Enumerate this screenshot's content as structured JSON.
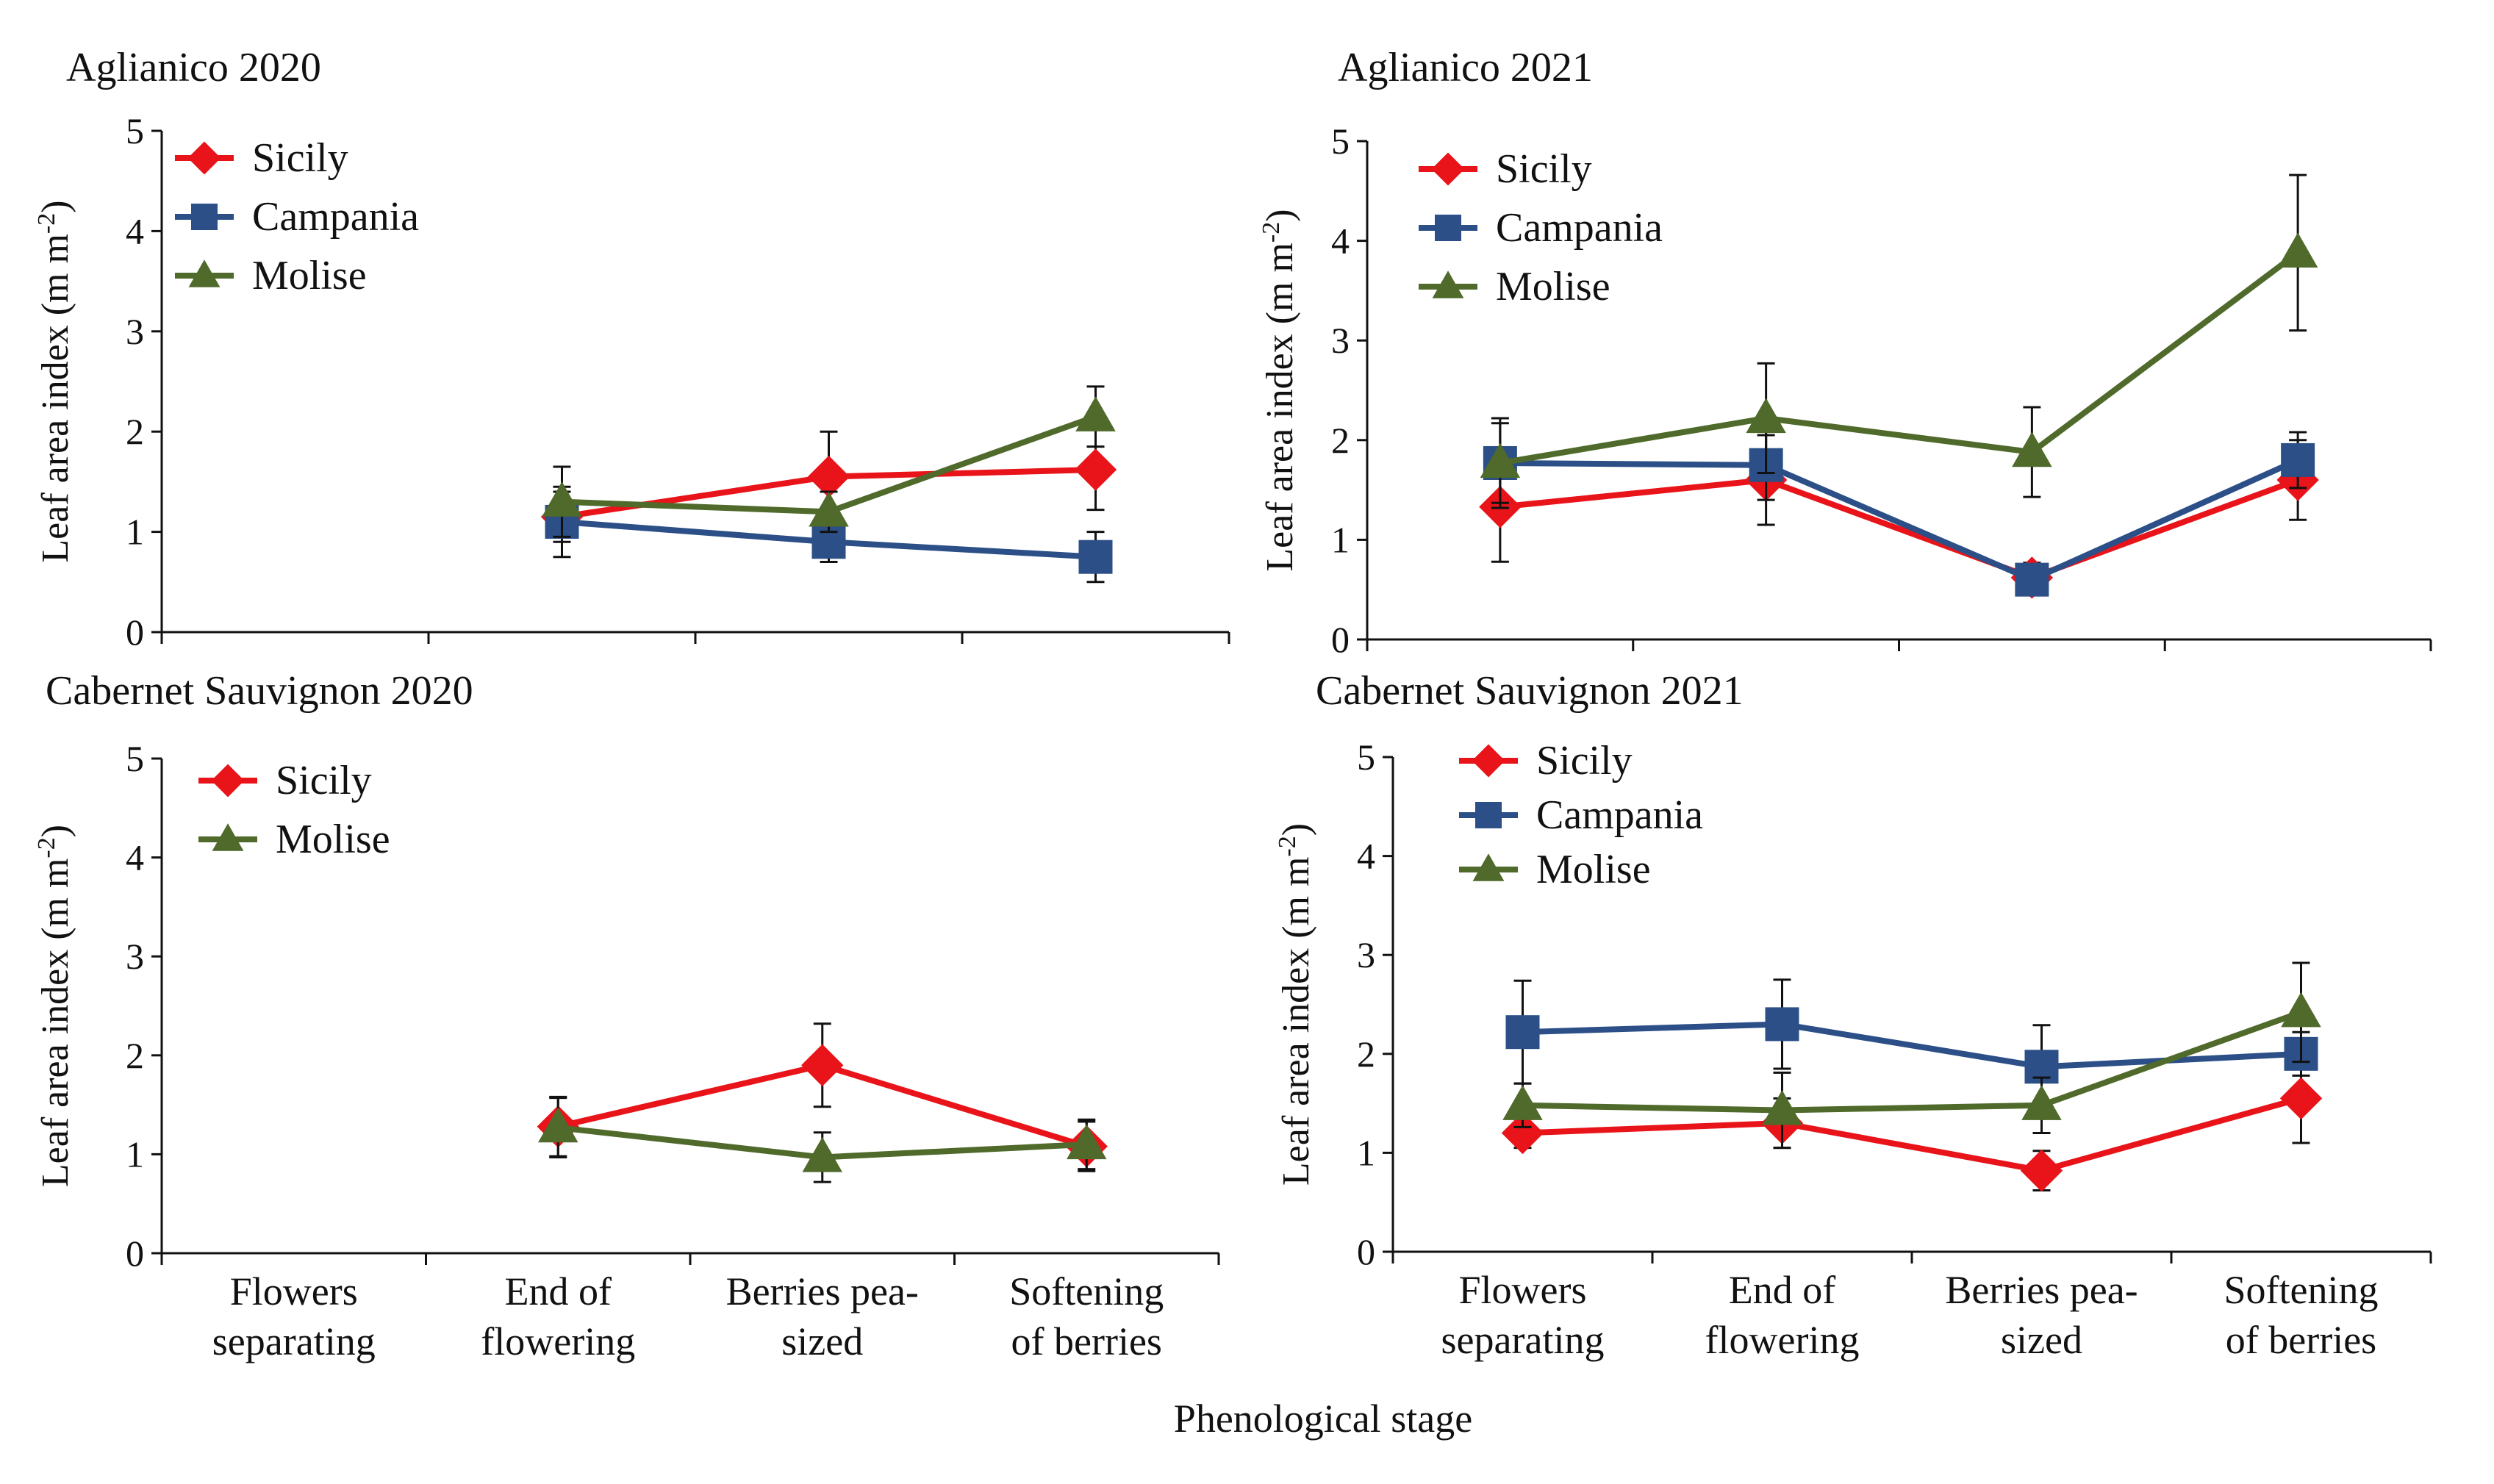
{
  "figure": {
    "xlabel": "Phenological stage",
    "colors": {
      "Sicily": "#e8141a",
      "Campania": "#2b4f86",
      "Molise": "#4f6a2a",
      "axis": "#111111"
    }
  },
  "chart_data": [
    {
      "type": "line",
      "title": "Aglianico 2020",
      "ylabel": "Leaf area index (m m",
      "ylabel_sup": "-2",
      "ylabel_close": ")",
      "ylim": [
        0,
        5
      ],
      "yticks": [
        "0",
        "1",
        "2",
        "3",
        "4",
        "5"
      ],
      "categories": [
        "Flowers separating",
        "End of flowering",
        "Berries pea-sized",
        "Softening of berries"
      ],
      "series": [
        {
          "name": "Sicily",
          "marker": "diamond",
          "values": [
            null,
            1.15,
            1.55,
            1.62
          ],
          "errors": [
            null,
            0.25,
            0.45,
            0.4
          ]
        },
        {
          "name": "Campania",
          "marker": "square",
          "values": [
            null,
            1.1,
            0.9,
            0.75
          ],
          "errors": [
            null,
            0.35,
            0.2,
            0.25
          ]
        },
        {
          "name": "Molise",
          "marker": "triangle",
          "values": [
            null,
            1.3,
            1.2,
            2.15
          ],
          "errors": [
            null,
            0.35,
            0.2,
            0.3
          ]
        }
      ]
    },
    {
      "type": "line",
      "title": "Aglianico 2021",
      "ylabel": "Leaf area index (m m",
      "ylabel_sup": "-2",
      "ylabel_close": ")",
      "ylim": [
        0,
        5
      ],
      "yticks": [
        "0",
        "1",
        "2",
        "3",
        "4",
        "5"
      ],
      "categories": [
        "Flowers separating",
        "End of flowering",
        "Berries pea-sized",
        "Softening of berries"
      ],
      "series": [
        {
          "name": "Sicily",
          "marker": "diamond",
          "values": [
            1.33,
            1.6,
            0.62,
            1.6
          ],
          "errors": [
            0.55,
            0.45,
            0.15,
            0.4
          ]
        },
        {
          "name": "Campania",
          "marker": "square",
          "values": [
            1.77,
            1.75,
            0.6,
            1.8
          ],
          "errors": [
            0.4,
            0.35,
            0.15,
            0.28
          ]
        },
        {
          "name": "Molise",
          "marker": "triangle",
          "values": [
            1.77,
            2.22,
            1.88,
            3.88
          ],
          "errors": [
            0.45,
            0.55,
            0.45,
            0.78
          ]
        }
      ]
    },
    {
      "type": "line",
      "title": "Cabernet Sauvignon 2020",
      "ylabel": "Leaf area index (m m",
      "ylabel_sup": "-2",
      "ylabel_close": ")",
      "ylim": [
        0,
        5
      ],
      "yticks": [
        "0",
        "1",
        "2",
        "3",
        "4",
        "5"
      ],
      "categories": [
        "Flowers separating",
        "End of flowering",
        "Berries pea-sized",
        "Softening of berries"
      ],
      "series": [
        {
          "name": "Sicily",
          "marker": "diamond",
          "values": [
            null,
            1.28,
            1.9,
            1.08
          ],
          "errors": [
            null,
            0.3,
            0.42,
            0.25
          ]
        },
        {
          "name": "Molise",
          "marker": "triangle",
          "values": [
            null,
            1.27,
            0.97,
            1.1
          ],
          "errors": [
            null,
            0.3,
            0.25,
            0.25
          ]
        }
      ]
    },
    {
      "type": "line",
      "title": "Cabernet Sauvignon 2021",
      "ylabel": "Leaf area index (m m",
      "ylabel_sup": "-2",
      "ylabel_close": ")",
      "ylim": [
        0,
        5
      ],
      "yticks": [
        "0",
        "1",
        "2",
        "3",
        "4",
        "5"
      ],
      "categories": [
        "Flowers separating",
        "End of flowering",
        "Berries pea-sized",
        "Softening of berries"
      ],
      "series": [
        {
          "name": "Sicily",
          "marker": "diamond",
          "values": [
            1.2,
            1.3,
            0.82,
            1.55
          ],
          "errors": [
            0.15,
            0.25,
            0.2,
            0.45
          ]
        },
        {
          "name": "Campania",
          "marker": "square",
          "values": [
            2.22,
            2.3,
            1.87,
            2.0
          ],
          "errors": [
            0.52,
            0.45,
            0.42,
            0.22
          ]
        },
        {
          "name": "Molise",
          "marker": "triangle",
          "values": [
            1.48,
            1.43,
            1.48,
            2.42
          ],
          "errors": [
            0.22,
            0.38,
            0.28,
            0.5
          ]
        }
      ]
    }
  ]
}
